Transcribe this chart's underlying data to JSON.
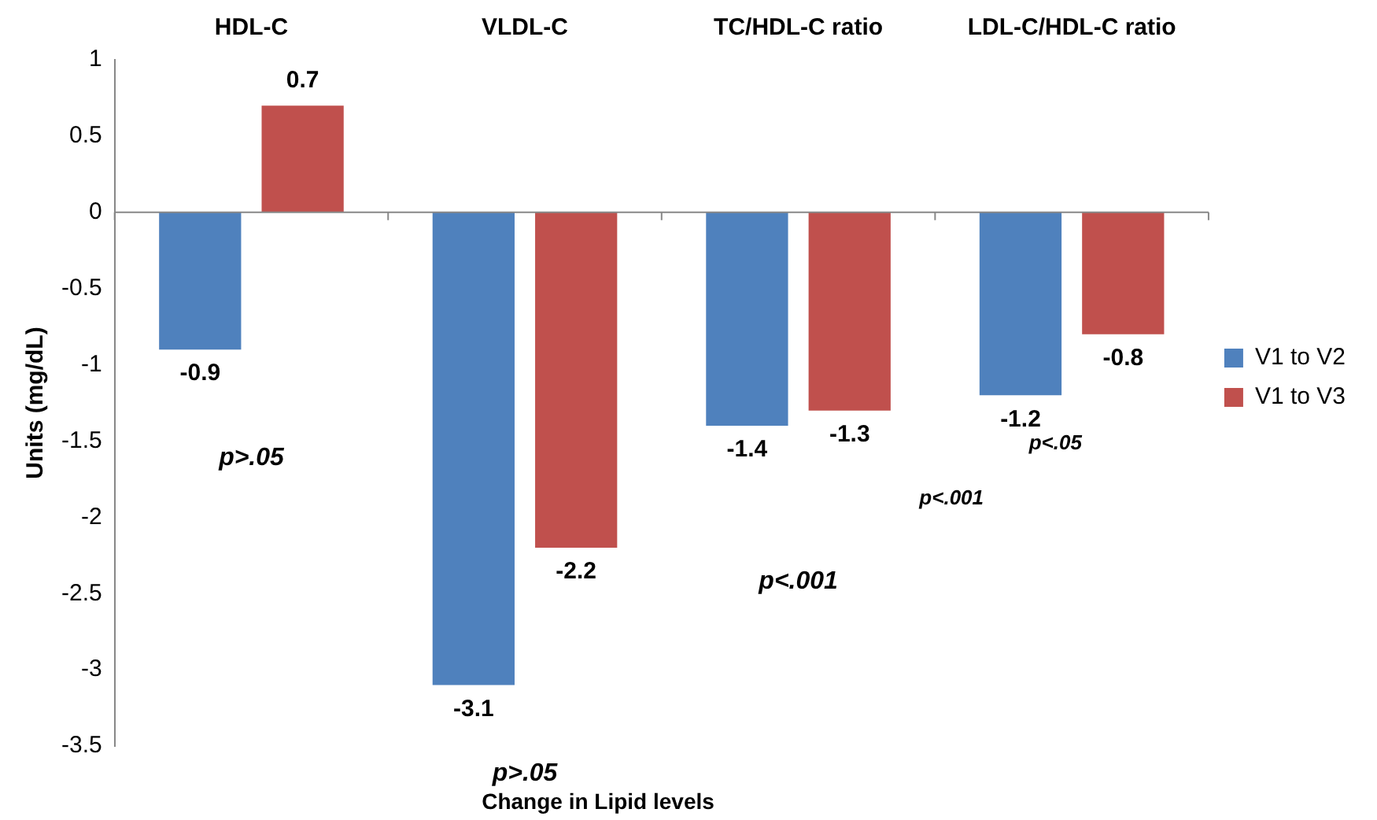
{
  "chart_data": {
    "type": "bar",
    "categories": [
      "HDL-C",
      "VLDL-C",
      "TC/HDL-C ratio",
      "LDL-C/HDL-C ratio"
    ],
    "series": [
      {
        "name": "V1 to V2",
        "color": "#4f81bd",
        "values": [
          -0.9,
          -3.1,
          -1.4,
          -1.2
        ]
      },
      {
        "name": "V1 to V3",
        "color": "#c0504d",
        "values": [
          0.7,
          -2.2,
          -1.3,
          -0.8
        ]
      }
    ],
    "ylabel": "Units (mg/dL)",
    "xlabel": "Change in Lipid levels",
    "ylim": [
      -3.5,
      1
    ],
    "yticks": [
      -3.5,
      -3,
      -2.5,
      -2,
      -1.5,
      -1,
      -0.5,
      0,
      0.5,
      1
    ],
    "data_labels": true,
    "legend": "right",
    "annotations": [
      "p>.05",
      "p>.05",
      "p<.001",
      "p<.05",
      "p<.001"
    ]
  }
}
